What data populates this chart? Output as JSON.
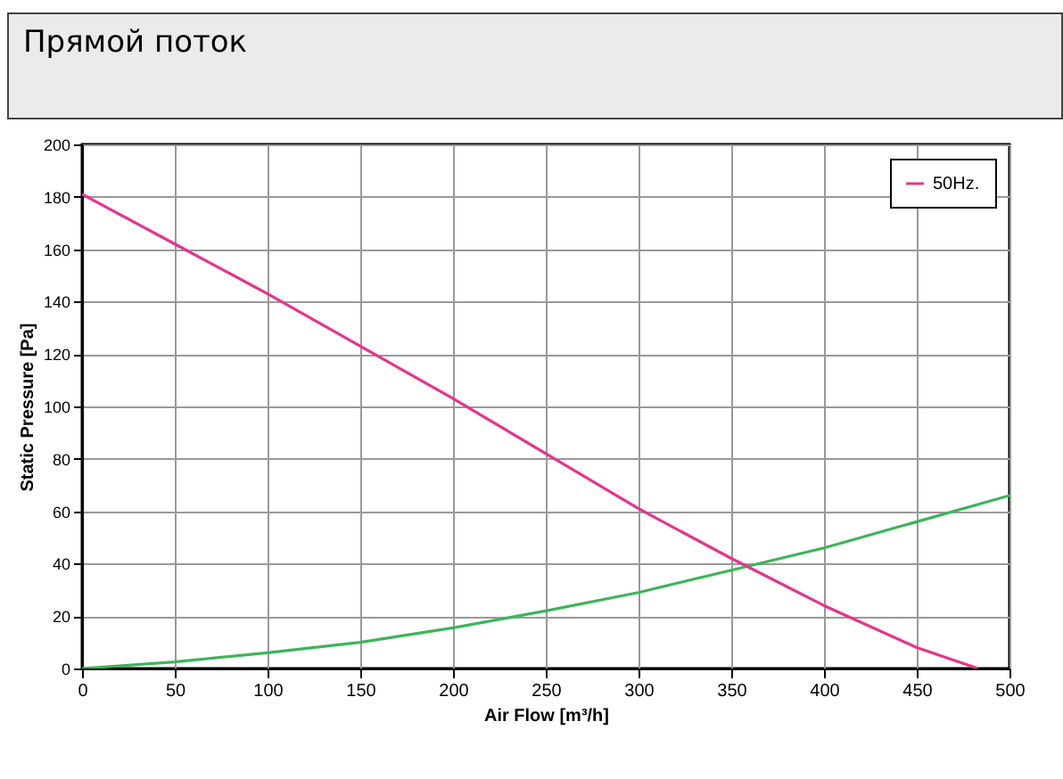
{
  "chart_data": {
    "type": "line",
    "title": "Прямой поток",
    "xlabel": "Air Flow [m³/h]",
    "ylabel": "Static Pressure [Pa]",
    "xlim": [
      0,
      500
    ],
    "xticks": [
      0,
      50,
      100,
      150,
      200,
      250,
      300,
      350,
      400,
      450,
      500
    ],
    "ylim": [
      0,
      200
    ],
    "yticks": [
      0,
      20,
      40,
      60,
      80,
      100,
      120,
      140,
      160,
      180,
      200
    ],
    "grid": true,
    "legend": "top right",
    "marker": "none",
    "line_style": "solid",
    "series": [
      {
        "color": "#3cb55a",
        "x": [
          0,
          50,
          100,
          150,
          200,
          250,
          300,
          350,
          400,
          450,
          500
        ],
        "values": [
          0,
          2.5,
          6,
          10,
          15.5,
          22,
          29,
          37.5,
          46,
          56,
          66
        ]
      },
      {
        "name": "50Hz.",
        "color": "#e8338a",
        "x": [
          0,
          50,
          100,
          150,
          200,
          250,
          300,
          350,
          400,
          450,
          483
        ],
        "values": [
          181,
          162,
          143,
          123,
          103,
          82,
          61,
          42,
          24,
          8,
          0
        ]
      }
    ]
  }
}
